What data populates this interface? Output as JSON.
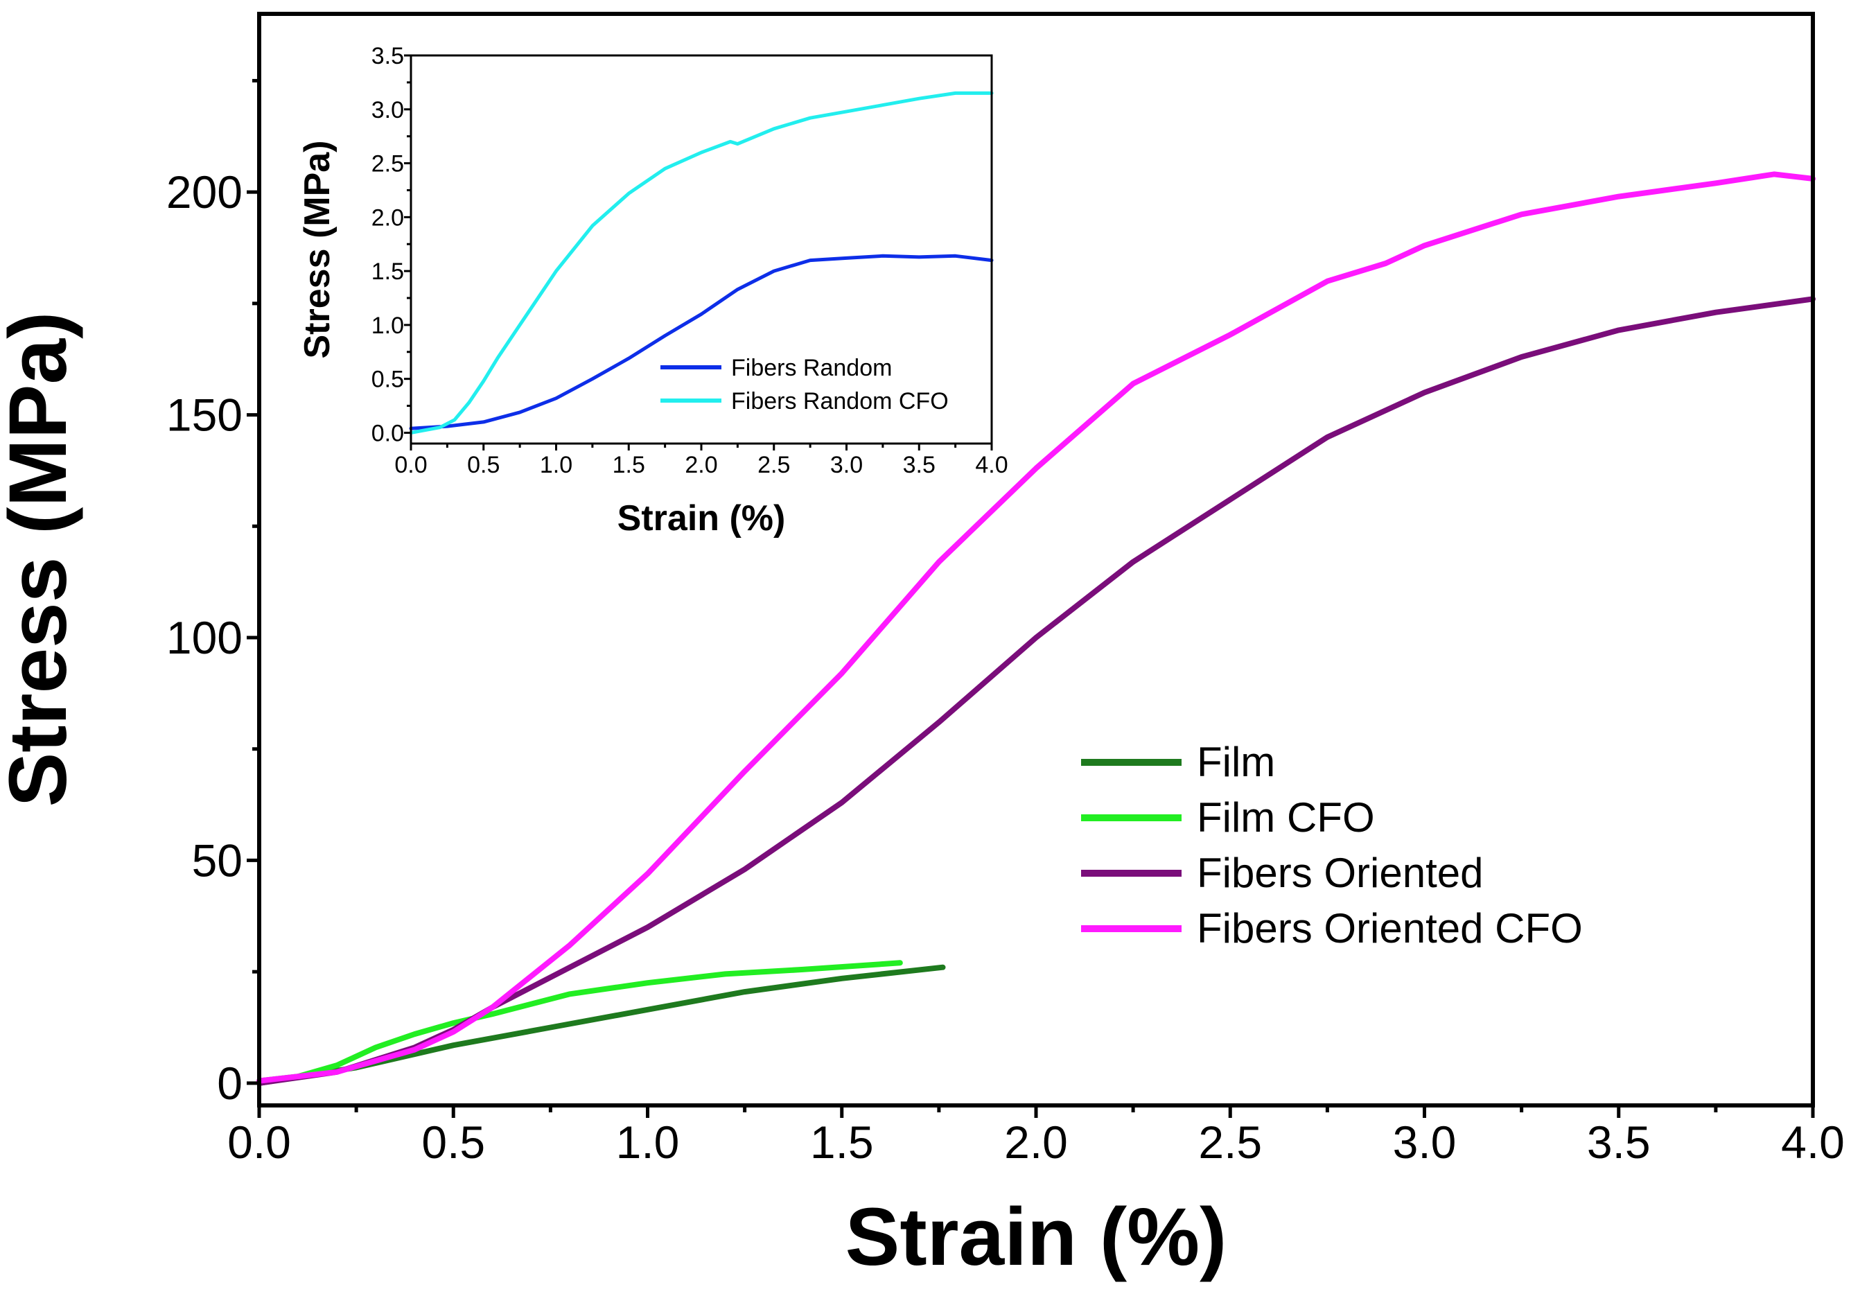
{
  "chart_data": [
    {
      "type": "line",
      "role": "main",
      "xlabel": "Strain (%)",
      "ylabel": "Stress (MPa)",
      "xlim": [
        0,
        4
      ],
      "ylim": [
        -5,
        240
      ],
      "xticks": [
        0,
        0.5,
        1,
        1.5,
        2,
        2.5,
        3,
        3.5,
        4
      ],
      "xtick_labels": [
        "0.0",
        "0.5",
        "1.0",
        "1.5",
        "2.0",
        "2.5",
        "3.0",
        "3.5",
        "4.0"
      ],
      "yticks": [
        0,
        50,
        100,
        150,
        200
      ],
      "ytick_labels": [
        "0",
        "50",
        "100",
        "150",
        "200"
      ],
      "legend_position": "center-right",
      "series": [
        {
          "name": "Film",
          "color": "#1e7a1e",
          "points": [
            [
              0,
              0
            ],
            [
              0.25,
              3.5
            ],
            [
              0.5,
              8.5
            ],
            [
              0.75,
              12.5
            ],
            [
              1.0,
              16.5
            ],
            [
              1.25,
              20.5
            ],
            [
              1.5,
              23.5
            ],
            [
              1.76,
              26
            ]
          ]
        },
        {
          "name": "Film CFO",
          "color": "#22ee22",
          "points": [
            [
              0,
              0.5
            ],
            [
              0.1,
              1.5
            ],
            [
              0.2,
              4
            ],
            [
              0.3,
              8
            ],
            [
              0.4,
              11
            ],
            [
              0.5,
              13.5
            ],
            [
              0.6,
              15.5
            ],
            [
              0.8,
              20
            ],
            [
              1.0,
              22.5
            ],
            [
              1.2,
              24.5
            ],
            [
              1.4,
              25.5
            ],
            [
              1.65,
              27
            ]
          ]
        },
        {
          "name": "Fibers Oriented",
          "color": "#7a0d7a",
          "points": [
            [
              0,
              0
            ],
            [
              0.2,
              2.5
            ],
            [
              0.4,
              8
            ],
            [
              0.5,
              12
            ],
            [
              0.6,
              17
            ],
            [
              0.8,
              26
            ],
            [
              1.0,
              35
            ],
            [
              1.25,
              48
            ],
            [
              1.5,
              63
            ],
            [
              1.75,
              81
            ],
            [
              2.0,
              100
            ],
            [
              2.25,
              117
            ],
            [
              2.5,
              131
            ],
            [
              2.75,
              145
            ],
            [
              3.0,
              155
            ],
            [
              3.25,
              163
            ],
            [
              3.5,
              169
            ],
            [
              3.75,
              173
            ],
            [
              4.0,
              176
            ]
          ]
        },
        {
          "name": "Fibers Oriented CFO",
          "color": "#ff1aff",
          "points": [
            [
              0,
              0.5
            ],
            [
              0.2,
              2.5
            ],
            [
              0.4,
              7.5
            ],
            [
              0.5,
              11.5
            ],
            [
              0.6,
              17
            ],
            [
              0.8,
              31
            ],
            [
              1.0,
              47
            ],
            [
              1.25,
              70
            ],
            [
              1.5,
              92
            ],
            [
              1.75,
              117
            ],
            [
              2.0,
              138
            ],
            [
              2.25,
              157
            ],
            [
              2.5,
              168
            ],
            [
              2.75,
              180
            ],
            [
              2.9,
              184
            ],
            [
              3.0,
              188
            ],
            [
              3.25,
              195
            ],
            [
              3.5,
              199
            ],
            [
              3.75,
              202
            ],
            [
              3.9,
              204
            ],
            [
              4.0,
              203
            ]
          ]
        }
      ]
    },
    {
      "type": "line",
      "role": "inset",
      "xlabel": "Strain (%)",
      "ylabel": "Stress (MPa)",
      "xlim": [
        0,
        4
      ],
      "ylim": [
        -0.1,
        3.5
      ],
      "xticks": [
        0,
        0.5,
        1,
        1.5,
        2,
        2.5,
        3,
        3.5,
        4
      ],
      "xtick_labels": [
        "0.0",
        "0.5",
        "1.0",
        "1.5",
        "2.0",
        "2.5",
        "3.0",
        "3.5",
        "4.0"
      ],
      "yticks": [
        0,
        0.5,
        1,
        1.5,
        2,
        2.5,
        3,
        3.5
      ],
      "ytick_labels": [
        "0.0",
        "0.5",
        "1.0",
        "1.5",
        "2.0",
        "2.5",
        "3.0",
        "3.5"
      ],
      "legend_position": "bottom-right",
      "series": [
        {
          "name": "Fibers Random",
          "color": "#0d2ee8",
          "points": [
            [
              0,
              0.04
            ],
            [
              0.25,
              0.06
            ],
            [
              0.5,
              0.1
            ],
            [
              0.75,
              0.19
            ],
            [
              1.0,
              0.32
            ],
            [
              1.25,
              0.5
            ],
            [
              1.5,
              0.69
            ],
            [
              1.75,
              0.9
            ],
            [
              2.0,
              1.1
            ],
            [
              2.25,
              1.33
            ],
            [
              2.5,
              1.5
            ],
            [
              2.75,
              1.6
            ],
            [
              3.0,
              1.62
            ],
            [
              3.25,
              1.64
            ],
            [
              3.5,
              1.63
            ],
            [
              3.75,
              1.64
            ],
            [
              4.0,
              1.6
            ]
          ]
        },
        {
          "name": "Fibers Random CFO",
          "color": "#22eeee",
          "points": [
            [
              0,
              0.0
            ],
            [
              0.2,
              0.05
            ],
            [
              0.3,
              0.12
            ],
            [
              0.4,
              0.28
            ],
            [
              0.5,
              0.48
            ],
            [
              0.6,
              0.7
            ],
            [
              0.75,
              1.0
            ],
            [
              1.0,
              1.5
            ],
            [
              1.25,
              1.92
            ],
            [
              1.5,
              2.22
            ],
            [
              1.75,
              2.45
            ],
            [
              2.0,
              2.6
            ],
            [
              2.2,
              2.7
            ],
            [
              2.25,
              2.68
            ],
            [
              2.5,
              2.82
            ],
            [
              2.75,
              2.92
            ],
            [
              3.0,
              2.98
            ],
            [
              3.25,
              3.04
            ],
            [
              3.5,
              3.1
            ],
            [
              3.75,
              3.15
            ],
            [
              4.0,
              3.15
            ]
          ]
        }
      ]
    }
  ]
}
